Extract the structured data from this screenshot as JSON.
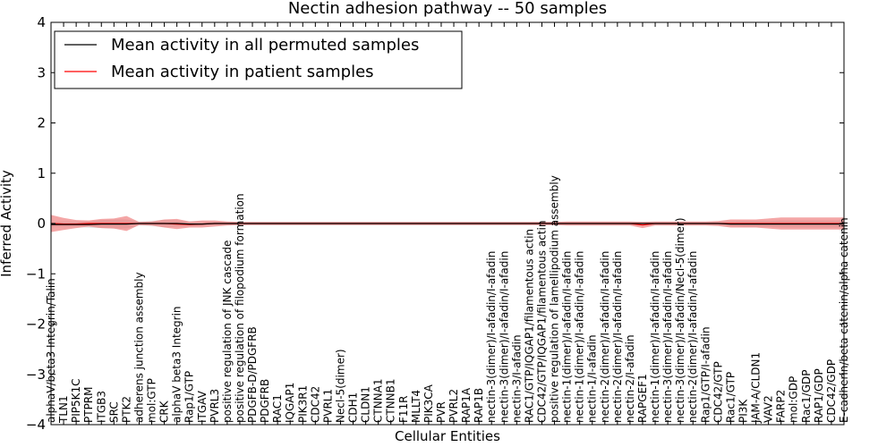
{
  "chart_data": {
    "type": "line",
    "title": "Nectin adhesion pathway -- 50 samples",
    "xlabel": "Cellular Entities",
    "ylabel": "Inferred Activity",
    "ylim": [
      -4,
      4
    ],
    "yticks": [
      -4,
      -3,
      -2,
      -1,
      0,
      1,
      2,
      3,
      4
    ],
    "ytick_labels": [
      "−4",
      "−3",
      "−2",
      "−1",
      "0",
      "1",
      "2",
      "3",
      "4"
    ],
    "legend_position": "top-left",
    "categories": [
      "alphaV/beta3 Integrin/Talin",
      "TLN1",
      "PIP5K1C",
      "PTPRM",
      "ITGB3",
      "SRC",
      "PTK2",
      "adherens junction assembly",
      "mol:GTP",
      "CRK",
      "alphaV beta3 Integrin",
      "Rap1/GTP",
      "ITGAV",
      "PVRL3",
      "positive regulation of JNK cascade",
      "positive regulation of filopodium formation",
      "PDGFB-D/PDGFRB",
      "PDGFRB",
      "RAC1",
      "IQGAP1",
      "PIK3R1",
      "CDC42",
      "PVRL1",
      "Necl-5(dimer)",
      "CDH1",
      "CLDN1",
      "CTNNA1",
      "CTNNB1",
      "F11R",
      "MLLT4",
      "PIK3CA",
      "PVR",
      "PVRL2",
      "RAP1A",
      "RAP1B",
      "nectin-3(dimer)/I-afadin/I-afadin",
      "nectin-3(dimer)/I-afadin/I-afadin",
      "nectin-3/I-afadin",
      "RAC1/GTP/IQGAP1/filamentous actin",
      "CDC42/GTP/IQGAP1/filamentous actin",
      "positive regulation of lamellipodium assembly",
      "nectin-1(dimer)/I-afadin/I-afadin",
      "nectin-1(dimer)/I-afadin/I-afadin",
      "nectin-1/I-afadin",
      "nectin-2(dimer)/I-afadin/I-afadin",
      "nectin-2(dimer)/I-afadin/I-afadin",
      "nectin-2/I-afadin",
      "RAPGEF1",
      "nectin-1(dimer)/I-afadin/I-afadin",
      "nectin-3(dimer)/I-afadin/I-afadin",
      "nectin-3(dimer)/I-afadin/Necl-5(dimer)",
      "nectin-2(dimer)/I-afadin/I-afadin",
      "Rap1/GTP/I-afadin",
      "CDC42/GTP",
      "Rac1/GTP",
      "PI3K",
      "JAM-A/CLDN1",
      "VAV2",
      "FARP2",
      "mol:GDP",
      "Rac1/GDP",
      "RAP1/GDP",
      "CDC42/GDP",
      "E-cadherin/beta catenin/alpha catenin"
    ],
    "series": [
      {
        "name": "Mean activity in all permuted samples",
        "color": "#000000",
        "band_color": "#b0b0b0",
        "values": [
          -0.02,
          -0.02,
          -0.02,
          -0.02,
          -0.01,
          -0.01,
          -0.01,
          0.0,
          0.0,
          0.0,
          0.0,
          -0.01,
          -0.01,
          0.0,
          0.0,
          0.0,
          0.0,
          0.0,
          0.0,
          0.0,
          0.0,
          0.0,
          0.0,
          0.0,
          0.0,
          0.0,
          0.0,
          0.0,
          0.0,
          0.0,
          0.0,
          0.0,
          0.0,
          0.0,
          0.0,
          0.0,
          0.0,
          0.0,
          0.0,
          0.0,
          0.0,
          0.0,
          0.0,
          0.0,
          0.0,
          0.0,
          0.0,
          0.0,
          0.0,
          0.0,
          0.0,
          0.0,
          0.0,
          0.0,
          -0.01,
          -0.01,
          -0.01,
          -0.01,
          -0.01,
          -0.01,
          -0.01,
          -0.01,
          -0.01,
          -0.01
        ],
        "band_halfwidth": [
          0.05,
          0.05,
          0.05,
          0.06,
          0.08,
          0.09,
          0.09,
          0.04,
          0.05,
          0.07,
          0.06,
          0.05,
          0.04,
          0.04,
          0.03,
          0.03,
          0.03,
          0.03,
          0.03,
          0.03,
          0.03,
          0.03,
          0.03,
          0.03,
          0.03,
          0.03,
          0.03,
          0.03,
          0.03,
          0.03,
          0.03,
          0.03,
          0.03,
          0.03,
          0.03,
          0.03,
          0.03,
          0.03,
          0.03,
          0.03,
          0.03,
          0.03,
          0.03,
          0.03,
          0.03,
          0.03,
          0.03,
          0.03,
          0.03,
          0.03,
          0.03,
          0.03,
          0.03,
          0.04,
          0.05,
          0.06,
          0.06,
          0.06,
          0.07,
          0.07,
          0.07,
          0.07,
          0.07,
          0.07
        ]
      },
      {
        "name": "Mean activity in patient samples",
        "color": "#ff0000",
        "band_color": "#f08080",
        "values": [
          0.0,
          -0.01,
          -0.01,
          0.0,
          0.0,
          0.0,
          0.0,
          0.0,
          0.0,
          0.0,
          -0.01,
          -0.02,
          -0.01,
          0.0,
          0.0,
          0.0,
          0.0,
          0.0,
          0.0,
          0.0,
          0.0,
          0.0,
          0.0,
          0.0,
          0.0,
          0.0,
          0.0,
          0.0,
          0.0,
          0.0,
          0.0,
          0.0,
          0.0,
          0.0,
          0.0,
          0.0,
          0.0,
          0.0,
          0.0,
          0.0,
          0.0,
          0.0,
          0.0,
          0.0,
          0.0,
          0.0,
          0.0,
          -0.03,
          0.0,
          0.0,
          0.0,
          0.0,
          0.0,
          0.0,
          0.0,
          0.0,
          0.0,
          0.0,
          0.0,
          0.0,
          0.0,
          0.0,
          0.0,
          0.0
        ],
        "band_halfwidth": [
          0.17,
          0.12,
          0.08,
          0.06,
          0.09,
          0.1,
          0.15,
          0.03,
          0.04,
          0.08,
          0.1,
          0.06,
          0.07,
          0.06,
          0.04,
          0.03,
          0.03,
          0.03,
          0.03,
          0.03,
          0.03,
          0.03,
          0.03,
          0.03,
          0.03,
          0.03,
          0.03,
          0.03,
          0.03,
          0.03,
          0.03,
          0.03,
          0.03,
          0.03,
          0.03,
          0.03,
          0.03,
          0.03,
          0.03,
          0.03,
          0.03,
          0.04,
          0.04,
          0.04,
          0.04,
          0.04,
          0.04,
          0.06,
          0.04,
          0.04,
          0.04,
          0.04,
          0.04,
          0.05,
          0.08,
          0.08,
          0.08,
          0.1,
          0.12,
          0.12,
          0.12,
          0.12,
          0.12,
          0.12
        ]
      }
    ]
  }
}
